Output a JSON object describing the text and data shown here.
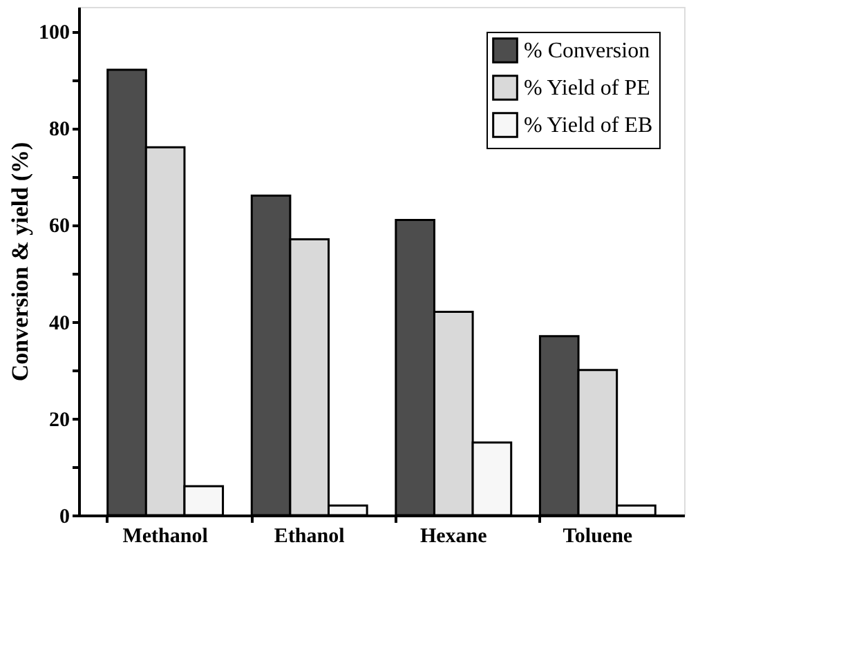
{
  "chart_data": {
    "type": "bar",
    "ylabel": "Conversion & yield (%)",
    "categories": [
      "Methanol",
      "Ethanol",
      "Hexane",
      "Toluene"
    ],
    "series": [
      {
        "name": "% Conversion",
        "color": "#4d4d4d",
        "values": [
          92,
          66,
          61,
          37
        ]
      },
      {
        "name": "% Yield of PE",
        "color": "#d9d9d9",
        "values": [
          76,
          57,
          42,
          30
        ]
      },
      {
        "name": "% Yield of EB",
        "color": "#f7f7f7",
        "values": [
          6,
          2,
          15,
          2
        ]
      }
    ],
    "ylim": [
      0,
      105
    ],
    "yticks": [
      0,
      {
        "value": 10,
        "label": null
      },
      20,
      {
        "value": 30,
        "label": null
      },
      40,
      {
        "value": 50,
        "label": null
      },
      60,
      {
        "value": 70,
        "label": null
      },
      80,
      {
        "value": 90,
        "label": null
      },
      100
    ],
    "grid": false,
    "legend": "top right"
  }
}
